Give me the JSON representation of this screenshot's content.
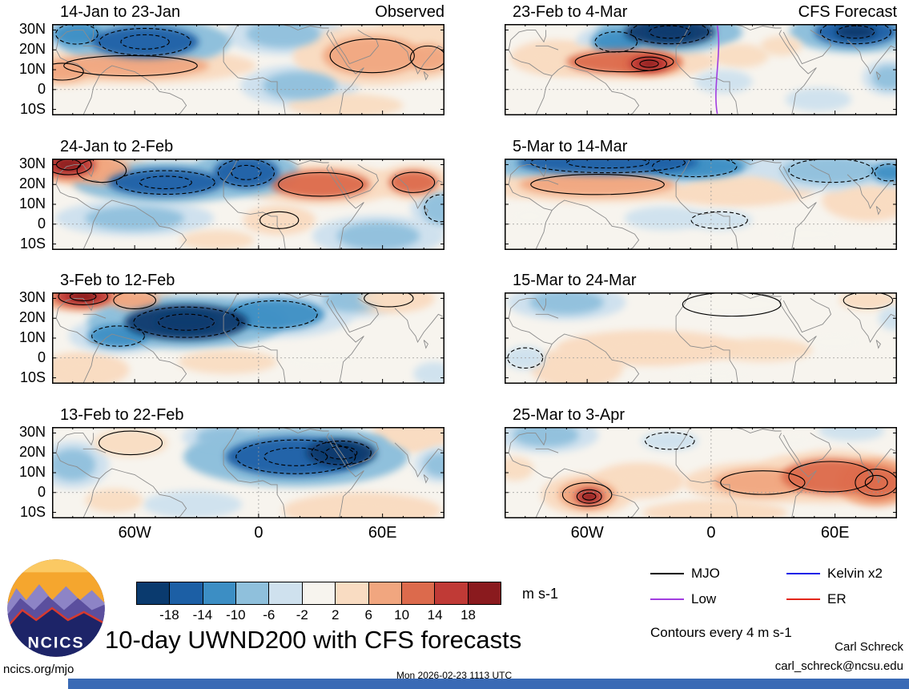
{
  "header": {
    "left_label": "Observed",
    "right_label": "CFS Forecast"
  },
  "axes": {
    "lat_ticks": [
      "30N",
      "20N",
      "10N",
      "0",
      "10S"
    ],
    "lon_ticks": [
      "60W",
      "0",
      "60E"
    ]
  },
  "colorbar": {
    "ticks": [
      "-18",
      "-14",
      "-10",
      "-6",
      "-2",
      "2",
      "6",
      "10",
      "14",
      "18"
    ],
    "colors": [
      "#0a3a6e",
      "#1c5fa5",
      "#3c8ec4",
      "#8fc0dc",
      "#cfe1ee",
      "#f7f4ee",
      "#f9dcc2",
      "#f1a67f",
      "#dc6a4c",
      "#c03a36",
      "#8a1a1e"
    ],
    "units": "m s-1"
  },
  "legend": {
    "items": [
      {
        "label": "MJO",
        "color": "#000000"
      },
      {
        "label": "Kelvin x2",
        "color": "#1622e8"
      },
      {
        "label": "Low",
        "color": "#a13de0"
      },
      {
        "label": "ER",
        "color": "#e3261a"
      }
    ],
    "note": "Contours every 4 m s-1"
  },
  "title": "10-day UWND200 with CFS forecasts",
  "credits": {
    "name": "Carl Schreck",
    "email": "carl_schreck@ncsu.edu"
  },
  "footer": {
    "left": "ncics.org/mjo",
    "center": "Mon 2026-02-23 1113 UTC"
  },
  "logo": {
    "text": "NCICS"
  },
  "chart_data": {
    "type": "heatmap",
    "variable": "10-day mean UWND200 zonal wind anomaly with CFS forecasts",
    "units": "m s-1",
    "contour_interval": 4,
    "lon_range": [
      -100,
      90
    ],
    "lat_range": [
      -13,
      33
    ],
    "levels": [
      -18,
      -14,
      -10,
      -6,
      -2,
      2,
      6,
      10,
      14,
      18
    ],
    "left_column": "Observed",
    "right_column": "CFS Forecast",
    "panels": [
      {
        "id": "obs-1",
        "column": "Observed",
        "title": "14-Jan to 23-Jan",
        "features": [
          [
            -55,
            24,
            26,
            8,
            -14
          ],
          [
            -88,
            28,
            12,
            6,
            -10
          ],
          [
            -62,
            12,
            38,
            6,
            10
          ],
          [
            -95,
            9,
            12,
            5,
            8
          ],
          [
            12,
            28,
            18,
            7,
            -6
          ],
          [
            55,
            17,
            24,
            10,
            10
          ],
          [
            80,
            29,
            14,
            7,
            6
          ],
          [
            82,
            16,
            10,
            7,
            8
          ],
          [
            20,
            2,
            18,
            7,
            -6
          ],
          [
            42,
            -8,
            28,
            6,
            4
          ]
        ]
      },
      {
        "id": "obs-2",
        "column": "Observed",
        "title": "24-Jan to 2-Feb",
        "features": [
          [
            -92,
            30,
            13,
            6,
            18
          ],
          [
            -76,
            27,
            14,
            7,
            10
          ],
          [
            -45,
            21,
            28,
            7,
            -14
          ],
          [
            -6,
            26,
            16,
            8,
            -14
          ],
          [
            30,
            20,
            24,
            7,
            12
          ],
          [
            75,
            21,
            12,
            6,
            12
          ],
          [
            10,
            2,
            11,
            5,
            6,
            1
          ],
          [
            -60,
            3,
            24,
            6,
            -6
          ],
          [
            88,
            8,
            9,
            8,
            -8
          ],
          [
            58,
            -6,
            20,
            7,
            -6
          ],
          [
            -20,
            -8,
            18,
            5,
            4
          ]
        ]
      },
      {
        "id": "obs-3",
        "column": "Observed",
        "title": "3-Feb to 12-Feb",
        "features": [
          [
            -85,
            31,
            14,
            5,
            16
          ],
          [
            -60,
            29,
            12,
            5,
            10
          ],
          [
            -35,
            18,
            30,
            9,
            -18
          ],
          [
            -68,
            11,
            15,
            6,
            -10
          ],
          [
            8,
            22,
            24,
            8,
            -10
          ],
          [
            45,
            29,
            14,
            6,
            -6
          ],
          [
            63,
            30,
            14,
            5,
            6,
            1
          ],
          [
            -15,
            -2,
            24,
            6,
            4
          ],
          [
            -85,
            -6,
            14,
            6,
            6
          ],
          [
            85,
            -8,
            10,
            6,
            -4
          ],
          [
            30,
            -1,
            18,
            6,
            2
          ]
        ]
      },
      {
        "id": "obs-4",
        "column": "Observed",
        "title": "13-Feb to 22-Feb",
        "features": [
          [
            -62,
            25,
            18,
            7,
            4,
            1
          ],
          [
            -90,
            14,
            11,
            8,
            -6
          ],
          [
            18,
            18,
            34,
            10,
            -14
          ],
          [
            40,
            20,
            17,
            7,
            -18
          ],
          [
            74,
            29,
            12,
            6,
            6
          ],
          [
            88,
            14,
            8,
            6,
            -6
          ],
          [
            -32,
            -6,
            24,
            7,
            -2
          ],
          [
            50,
            -9,
            24,
            6,
            6
          ],
          [
            -70,
            -4,
            14,
            6,
            4
          ],
          [
            -18,
            28,
            12,
            5,
            -6
          ]
        ]
      },
      {
        "id": "fc-1",
        "column": "CFS Forecast",
        "title": "23-Feb to 4-Mar",
        "features": [
          [
            -20,
            29,
            22,
            7,
            -18
          ],
          [
            -46,
            24,
            12,
            6,
            -10
          ],
          [
            70,
            29,
            20,
            7,
            -16
          ],
          [
            -42,
            14,
            28,
            6,
            12
          ],
          [
            -30,
            13,
            10,
            4,
            18
          ],
          [
            -75,
            16,
            14,
            6,
            6
          ],
          [
            14,
            17,
            14,
            6,
            4
          ],
          [
            6,
            4,
            14,
            6,
            -4
          ],
          [
            86,
            6,
            8,
            6,
            -6
          ],
          [
            52,
            -5,
            16,
            6,
            -4
          ],
          [
            34,
            22,
            10,
            5,
            4
          ]
        ],
        "overlay_lines": [
          {
            "color": "#a13de0",
            "lon": 3
          }
        ]
      },
      {
        "id": "fc-2",
        "column": "CFS Forecast",
        "title": "5-Mar to 14-Mar",
        "features": [
          [
            -50,
            31,
            44,
            6,
            -14
          ],
          [
            -8,
            29,
            24,
            6,
            -10
          ],
          [
            58,
            27,
            24,
            7,
            -8
          ],
          [
            -55,
            20,
            38,
            6,
            8
          ],
          [
            12,
            18,
            24,
            6,
            6
          ],
          [
            -22,
            3,
            20,
            6,
            -4
          ],
          [
            4,
            2,
            16,
            5,
            -4,
            1
          ],
          [
            76,
            12,
            14,
            7,
            6
          ],
          [
            46,
            -5,
            18,
            6,
            2
          ],
          [
            86,
            26,
            8,
            5,
            -10
          ],
          [
            -88,
            4,
            10,
            6,
            2
          ]
        ]
      },
      {
        "id": "fc-3",
        "column": "CFS Forecast",
        "title": "15-Mar to 24-Mar",
        "features": [
          [
            10,
            27,
            28,
            7,
            2,
            1
          ],
          [
            -70,
            28,
            18,
            6,
            -6
          ],
          [
            76,
            29,
            14,
            5,
            4,
            1
          ],
          [
            -30,
            5,
            28,
            6,
            6
          ],
          [
            -65,
            -5,
            14,
            7,
            6
          ],
          [
            25,
            4,
            24,
            6,
            4
          ],
          [
            60,
            8,
            14,
            6,
            2
          ],
          [
            -90,
            0,
            10,
            6,
            -2,
            1
          ],
          [
            0,
            -9,
            20,
            5,
            2
          ],
          [
            88,
            20,
            7,
            6,
            -4
          ]
        ]
      },
      {
        "id": "fc-4",
        "column": "CFS Forecast",
        "title": "25-Mar to 3-Apr",
        "features": [
          [
            -20,
            26,
            14,
            5,
            -4,
            1
          ],
          [
            -80,
            29,
            16,
            6,
            -6
          ],
          [
            68,
            31,
            16,
            5,
            -4
          ],
          [
            58,
            8,
            24,
            9,
            12
          ],
          [
            80,
            5,
            12,
            8,
            14
          ],
          [
            25,
            5,
            24,
            7,
            8
          ],
          [
            -60,
            -1,
            14,
            7,
            10
          ],
          [
            -59,
            -2,
            7,
            4,
            16
          ],
          [
            -35,
            6,
            14,
            6,
            6
          ],
          [
            -95,
            12,
            9,
            6,
            4
          ],
          [
            2,
            -10,
            22,
            4,
            6
          ],
          [
            40,
            26,
            10,
            5,
            2
          ]
        ]
      }
    ]
  }
}
